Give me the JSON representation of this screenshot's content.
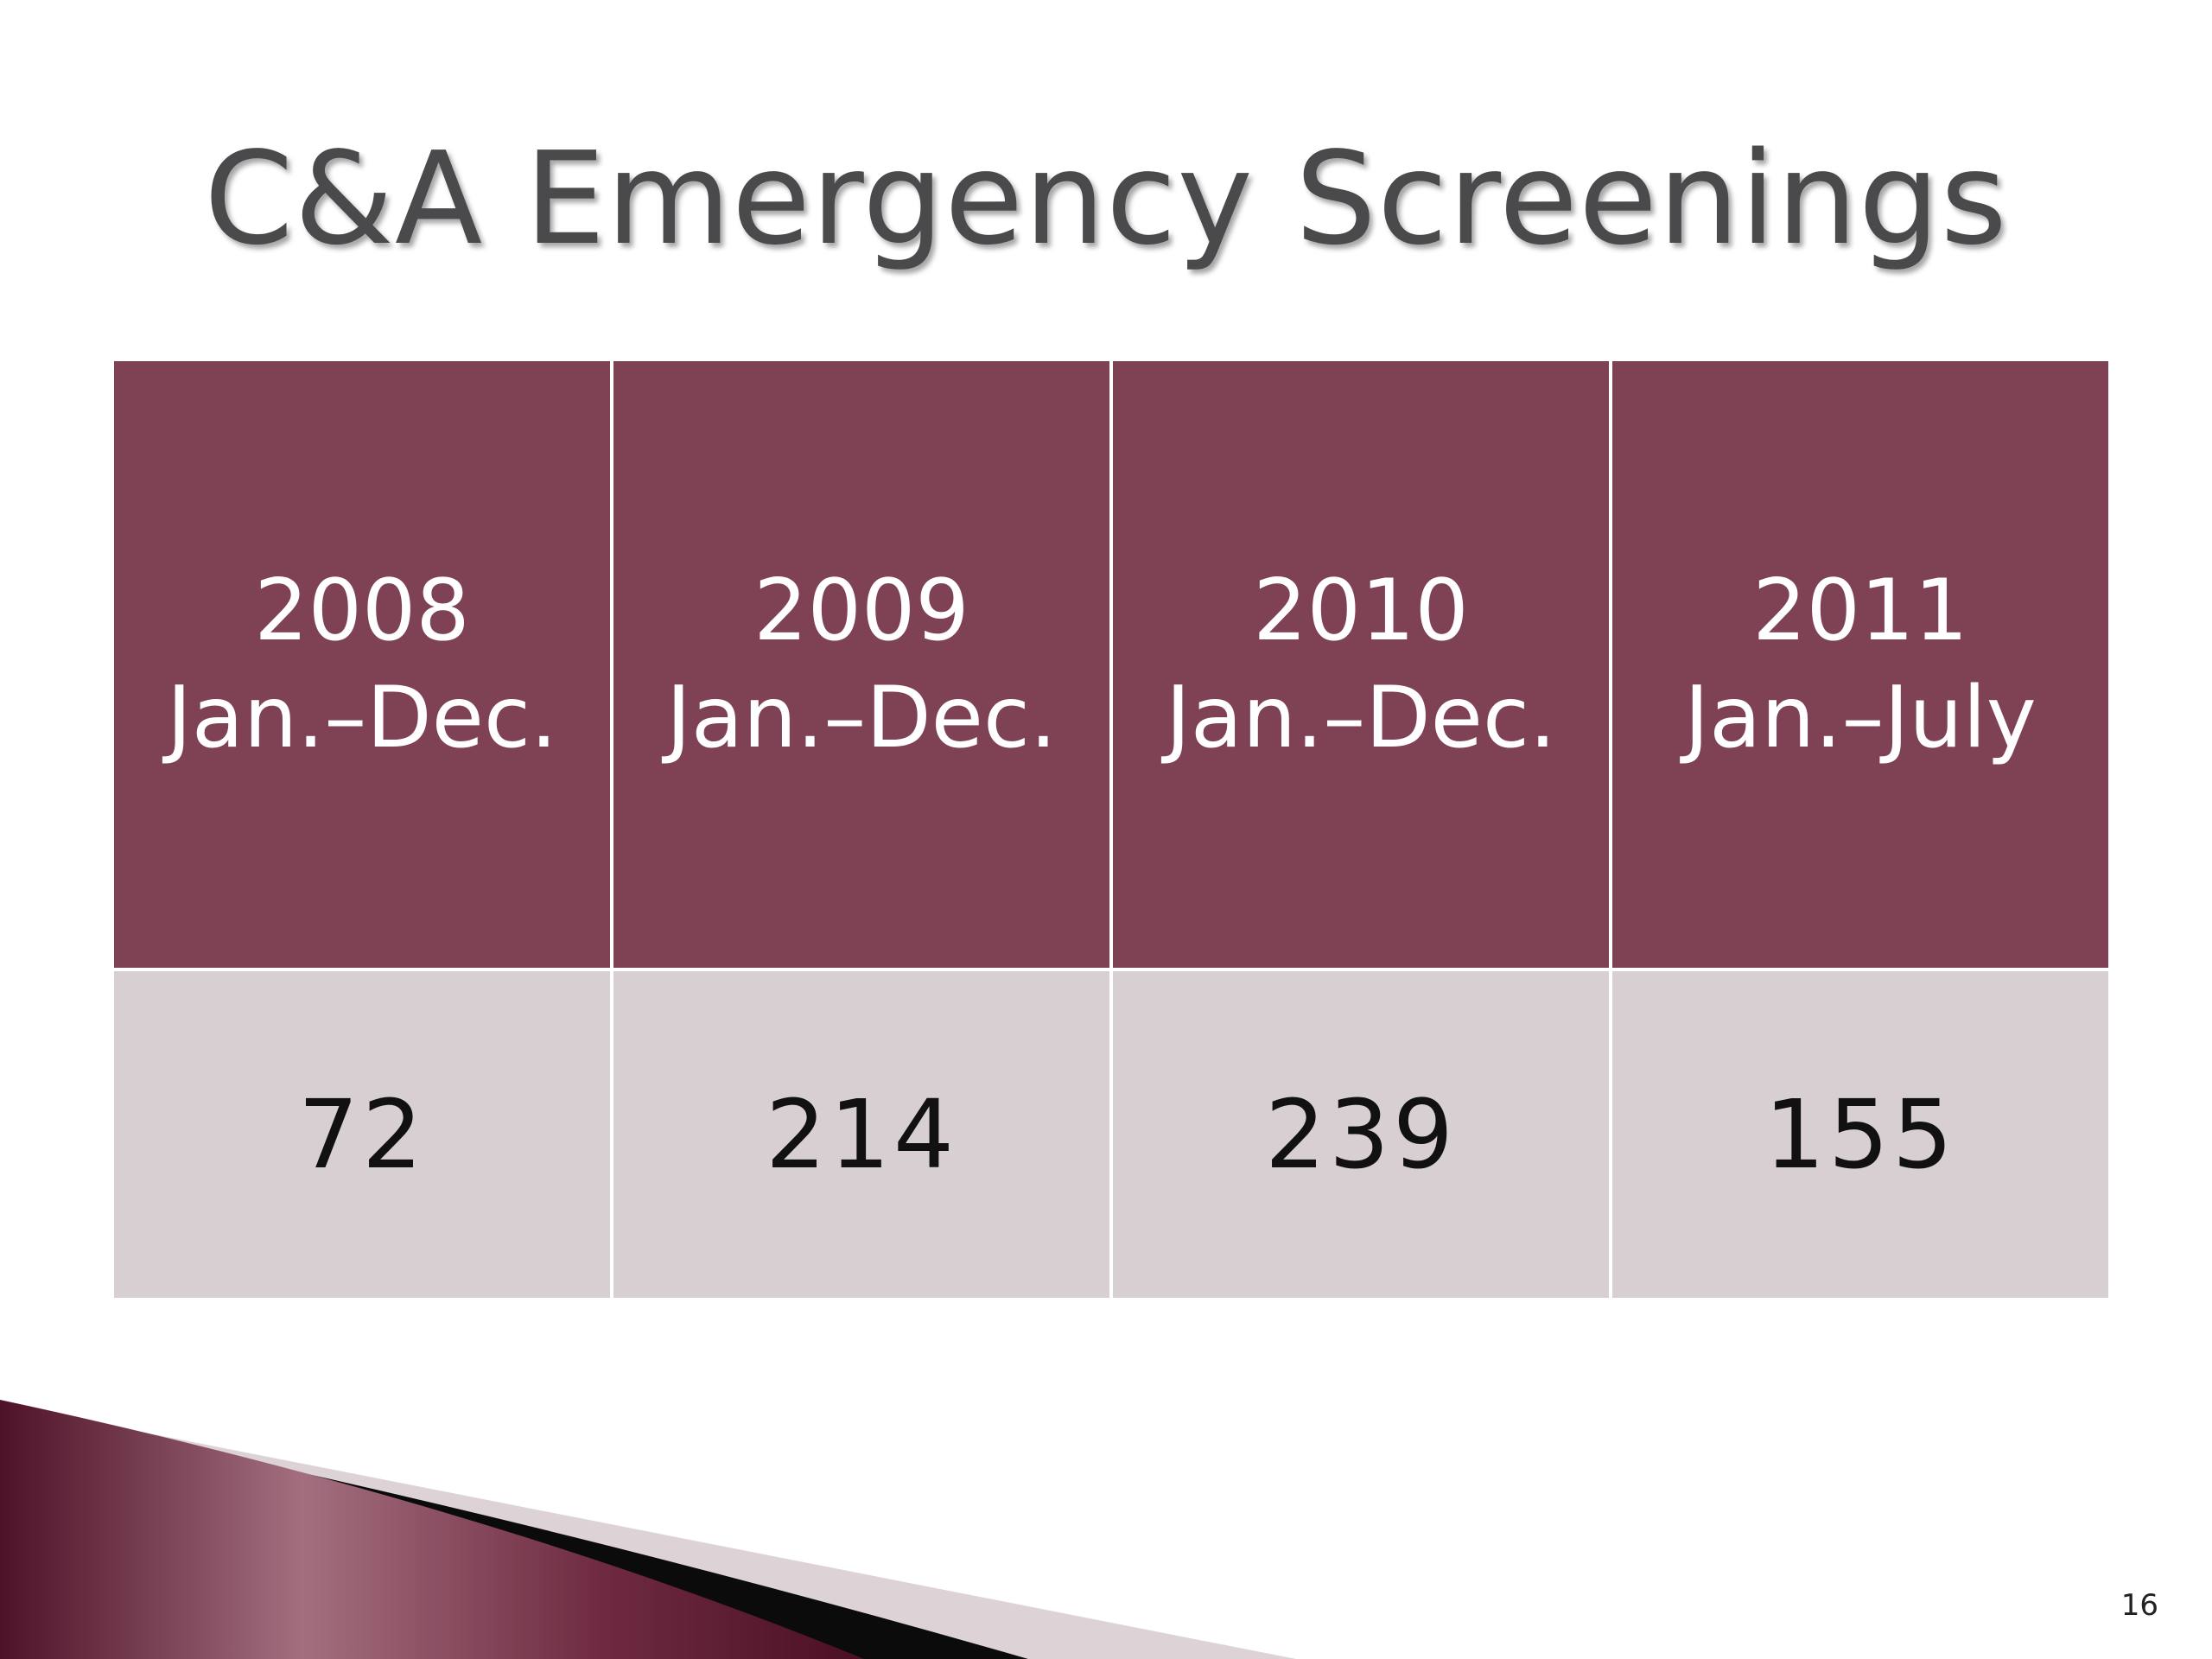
{
  "slide": {
    "title": "C&A Emergency Screenings",
    "page_number": "16"
  },
  "table": {
    "headers": [
      {
        "year": "2008",
        "period": "Jan.–Dec."
      },
      {
        "year": "2009",
        "period": "Jan.–Dec."
      },
      {
        "year": "2010",
        "period": "Jan.–Dec."
      },
      {
        "year": "2011",
        "period": "Jan.–July"
      }
    ],
    "values": [
      "72",
      "214",
      "239",
      "155"
    ]
  },
  "colors": {
    "header_fill": "#7f4255",
    "value_fill": "#d8cfd3",
    "title_text": "#4a4a4c",
    "accent_dark": "#5a1a30"
  }
}
